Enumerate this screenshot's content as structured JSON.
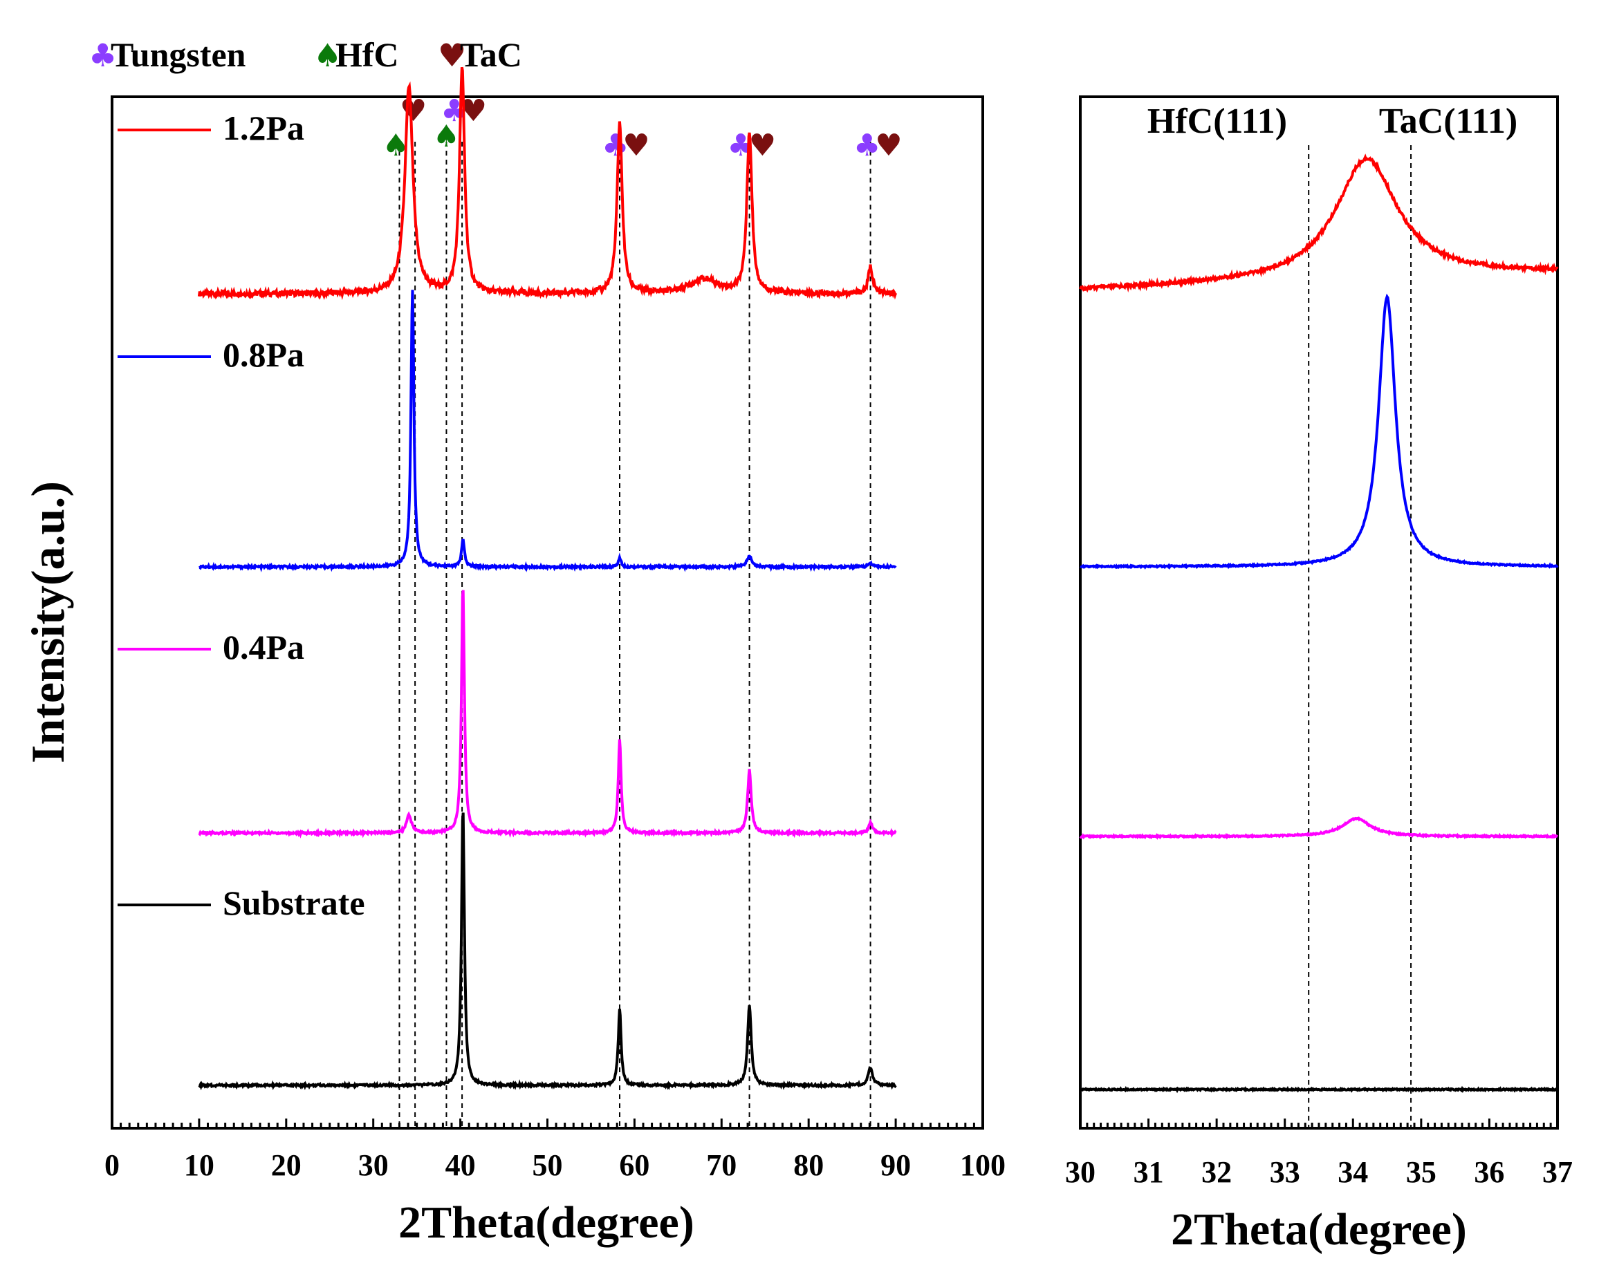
{
  "chart_data": [
    {
      "type": "line",
      "title": "",
      "xlabel": "2Theta(degree)",
      "ylabel": "Intensity(a.u.)",
      "xlim": [
        0,
        100
      ],
      "xticks": [
        0,
        10,
        20,
        30,
        40,
        50,
        60,
        70,
        80,
        90,
        100
      ],
      "x_range_data": [
        10,
        90
      ],
      "legend": [
        {
          "symbol": "♣",
          "label": "Tungsten",
          "color": "#8b3dff"
        },
        {
          "symbol": "♠",
          "label": "HfC",
          "color": "#0b7a0b"
        },
        {
          "symbol": "♥",
          "label": "TaC",
          "color": "#7a1010"
        }
      ],
      "reference_lines_x": [
        33,
        34.8,
        38.4,
        40.2,
        58.3,
        73.2,
        87.1
      ],
      "peak_markers": [
        {
          "x": 32.6,
          "symbol": "♠",
          "phase": "HfC"
        },
        {
          "x": 34.6,
          "symbol": "♥",
          "phase": "TaC"
        },
        {
          "x": 38.4,
          "symbol": "♠",
          "phase": "HfC"
        },
        {
          "x": 39.3,
          "symbol": "♣",
          "phase": "Tungsten"
        },
        {
          "x": 41.5,
          "symbol": "♥",
          "phase": "TaC"
        },
        {
          "x": 57.8,
          "symbol": "♣",
          "phase": "Tungsten"
        },
        {
          "x": 60.2,
          "symbol": "♥",
          "phase": "TaC"
        },
        {
          "x": 72.2,
          "symbol": "♣",
          "phase": "Tungsten"
        },
        {
          "x": 74.7,
          "symbol": "♥",
          "phase": "TaC"
        },
        {
          "x": 86.7,
          "symbol": "♣",
          "phase": "Tungsten"
        },
        {
          "x": 89.2,
          "symbol": "♥",
          "phase": "TaC"
        }
      ],
      "series": [
        {
          "name": "1.2Pa",
          "color": "#ff0000",
          "baseline": 0.2,
          "peaks": [
            [
              34.1,
              1.15,
              0.55
            ],
            [
              40.2,
              1.25,
              0.35
            ],
            [
              58.3,
              0.95,
              0.35
            ],
            [
              73.2,
              0.9,
              0.35
            ],
            [
              87.1,
              0.15,
              0.3
            ],
            [
              68.0,
              0.08,
              2.0
            ]
          ]
        },
        {
          "name": "0.8Pa",
          "color": "#0000ff",
          "baseline": 0.0,
          "peaks": [
            [
              34.5,
              1.55,
              0.2
            ],
            [
              40.3,
              0.15,
              0.2
            ],
            [
              58.3,
              0.05,
              0.2
            ],
            [
              73.2,
              0.06,
              0.35
            ],
            [
              87.1,
              0.02,
              0.3
            ]
          ]
        },
        {
          "name": "0.4Pa",
          "color": "#ff00ff",
          "baseline": 0.0,
          "peaks": [
            [
              34.1,
              0.1,
              0.35
            ],
            [
              40.3,
              1.38,
              0.2
            ],
            [
              58.3,
              0.52,
              0.2
            ],
            [
              73.2,
              0.35,
              0.25
            ],
            [
              87.1,
              0.06,
              0.25
            ]
          ]
        },
        {
          "name": "Substrate",
          "color": "#000000",
          "baseline": 0.0,
          "peaks": [
            [
              40.3,
              1.55,
              0.2
            ],
            [
              58.3,
              0.43,
              0.2
            ],
            [
              73.2,
              0.45,
              0.25
            ],
            [
              87.1,
              0.1,
              0.3
            ]
          ]
        }
      ]
    },
    {
      "type": "line",
      "title": "",
      "xlabel": "2Theta(degree)",
      "xlim": [
        30,
        37
      ],
      "xticks": [
        30,
        31,
        32,
        33,
        34,
        35,
        36,
        37
      ],
      "reference_lines_x": [
        33.35,
        34.85
      ],
      "annotations": [
        "HfC(111)",
        "TaC(111)"
      ],
      "series": [
        {
          "name": "1.2Pa",
          "color": "#ff0000",
          "center": 34.2,
          "height": 0.95,
          "width": 0.55,
          "baseline": 0.0
        },
        {
          "name": "0.8Pa",
          "color": "#0000ff",
          "center": 34.5,
          "height": 1.5,
          "width": 0.15,
          "baseline": 0.0
        },
        {
          "name": "0.4Pa",
          "color": "#ff00ff",
          "center": 34.05,
          "height": 0.1,
          "width": 0.25,
          "baseline": 0.0
        },
        {
          "name": "Substrate",
          "color": "#000000",
          "center": 34.0,
          "height": 0.0,
          "width": 0.3,
          "baseline": 0.0
        }
      ]
    }
  ]
}
